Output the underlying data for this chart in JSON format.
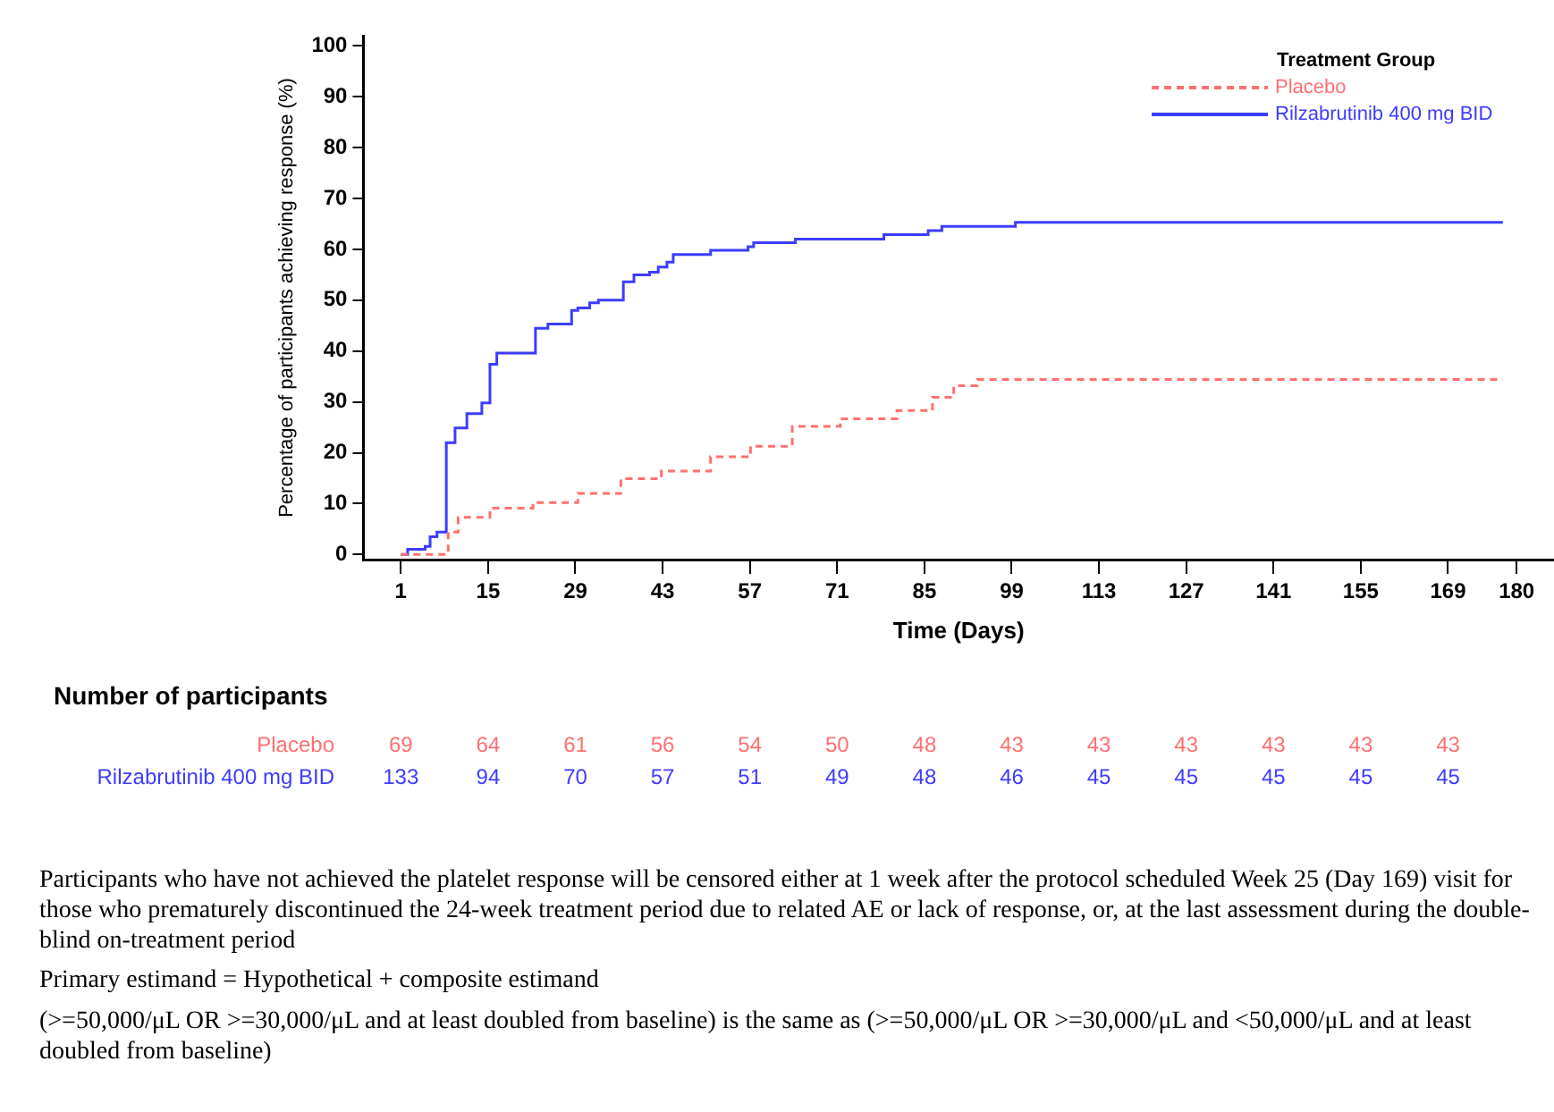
{
  "chart_data": {
    "type": "step",
    "xlabel": "Time (Days)",
    "ylabel": "Percentage of participants achieving response (%)",
    "legend_title": "Treatment Group",
    "legend": "top right",
    "grid": false,
    "xlim": [
      -5,
      186
    ],
    "xticks": [
      1,
      15,
      29,
      43,
      57,
      71,
      85,
      99,
      113,
      127,
      141,
      155,
      169,
      180
    ],
    "ylim": [
      -1,
      102
    ],
    "yticks": [
      0,
      10,
      20,
      30,
      40,
      50,
      60,
      70,
      80,
      90,
      100
    ],
    "series": [
      {
        "name": "Placebo",
        "color": "#ff7070",
        "line_style": "dashed",
        "x": [
          1,
          8.6,
          10.2,
          15.3,
          22.2,
          29.4,
          36.3,
          42.8,
          50.7,
          57.1,
          63.8,
          71.5,
          80.6,
          86.3,
          89.7,
          93.5,
          177.8
        ],
        "values": [
          0,
          4.4,
          7.3,
          9.1,
          10.2,
          12,
          14.9,
          16.4,
          19.2,
          21.3,
          25.2,
          26.7,
          28.3,
          30.9,
          33.2,
          34.4,
          34.4
        ]
      },
      {
        "name": "Rilzabrutinib 400 mg BID",
        "color": "#3c3cff",
        "line_style": "solid",
        "x": [
          1,
          2.1,
          4.9,
          5.7,
          6.8,
          8.3,
          9.7,
          11.6,
          14,
          15.3,
          16.4,
          22.6,
          24.6,
          28.4,
          29.4,
          31.3,
          32.7,
          36.7,
          38.4,
          40.9,
          42.3,
          43.7,
          44.7,
          50.7,
          56.7,
          57.6,
          64.3,
          78.5,
          85.6,
          87.8,
          99.6,
          177.8
        ],
        "values": [
          0,
          1,
          1.6,
          3.5,
          4.4,
          22,
          24.9,
          27.7,
          29.8,
          37.4,
          39.6,
          44.5,
          45.3,
          48,
          48.5,
          49.5,
          50,
          53.6,
          55,
          55.5,
          56.5,
          57.5,
          59,
          59.8,
          60.5,
          61.3,
          62,
          62.9,
          63.7,
          64.5,
          65.3,
          65.3
        ]
      }
    ],
    "annotations": [
      "Number of participants",
      "Placebo",
      "69",
      "64",
      "61",
      "56",
      "54",
      "50",
      "48",
      "43",
      "43",
      "43",
      "43",
      "43",
      "43",
      "Rilzabrutinib 400 mg BID",
      "133",
      "94",
      "70",
      "57",
      "51",
      "49",
      "48",
      "46",
      "45",
      "45",
      "45",
      "45",
      "45",
      "Participants who have not achieved the platelet response will be censored either at 1 week after the protocol scheduled Week 25 (Day 169) visit for those who prematurely discontinued the 24-week treatment period due to related AE or lack of response, or, at the last assessment during the double-blind on-treatment period",
      "Primary estimand = Hypothetical + composite estimand",
      "(>=50,000/μL OR >=30,000/μL and at least doubled from baseline) is the same as (>=50,000/μL OR >=30,000/μL and <50,000/μL and at least doubled from baseline)"
    ]
  }
}
